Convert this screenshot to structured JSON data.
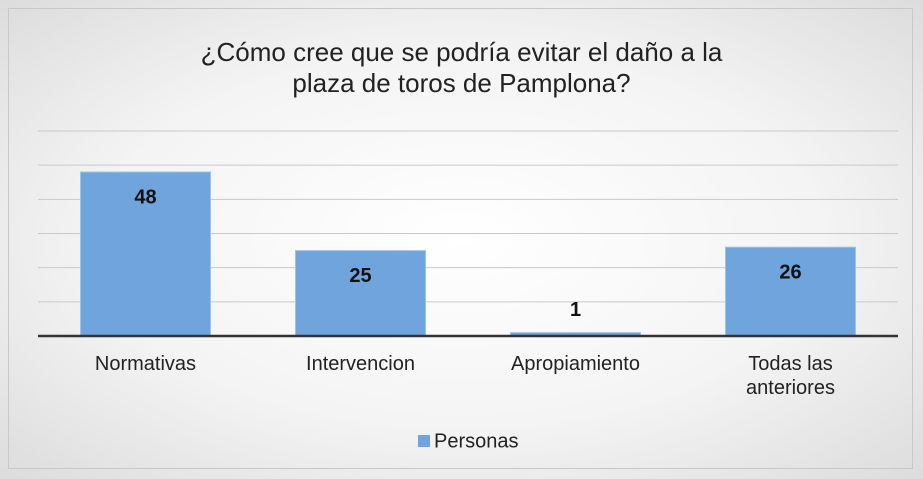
{
  "chart_data": {
    "type": "bar",
    "title": "¿Cómo cree que se podría evitar el daño a la plaza de toros de Pamplona?",
    "categories": [
      "Normativas",
      "Intervencion",
      "Apropiamiento",
      "Todas las anteriores"
    ],
    "series": [
      {
        "name": "Personas",
        "color": "#6fa5dc",
        "values": [
          48,
          25,
          1,
          26
        ]
      }
    ],
    "ylim": [
      0,
      60
    ],
    "yticks": [
      0,
      10,
      20,
      30,
      40,
      50,
      60
    ],
    "grid": true,
    "legend": "bottom"
  }
}
